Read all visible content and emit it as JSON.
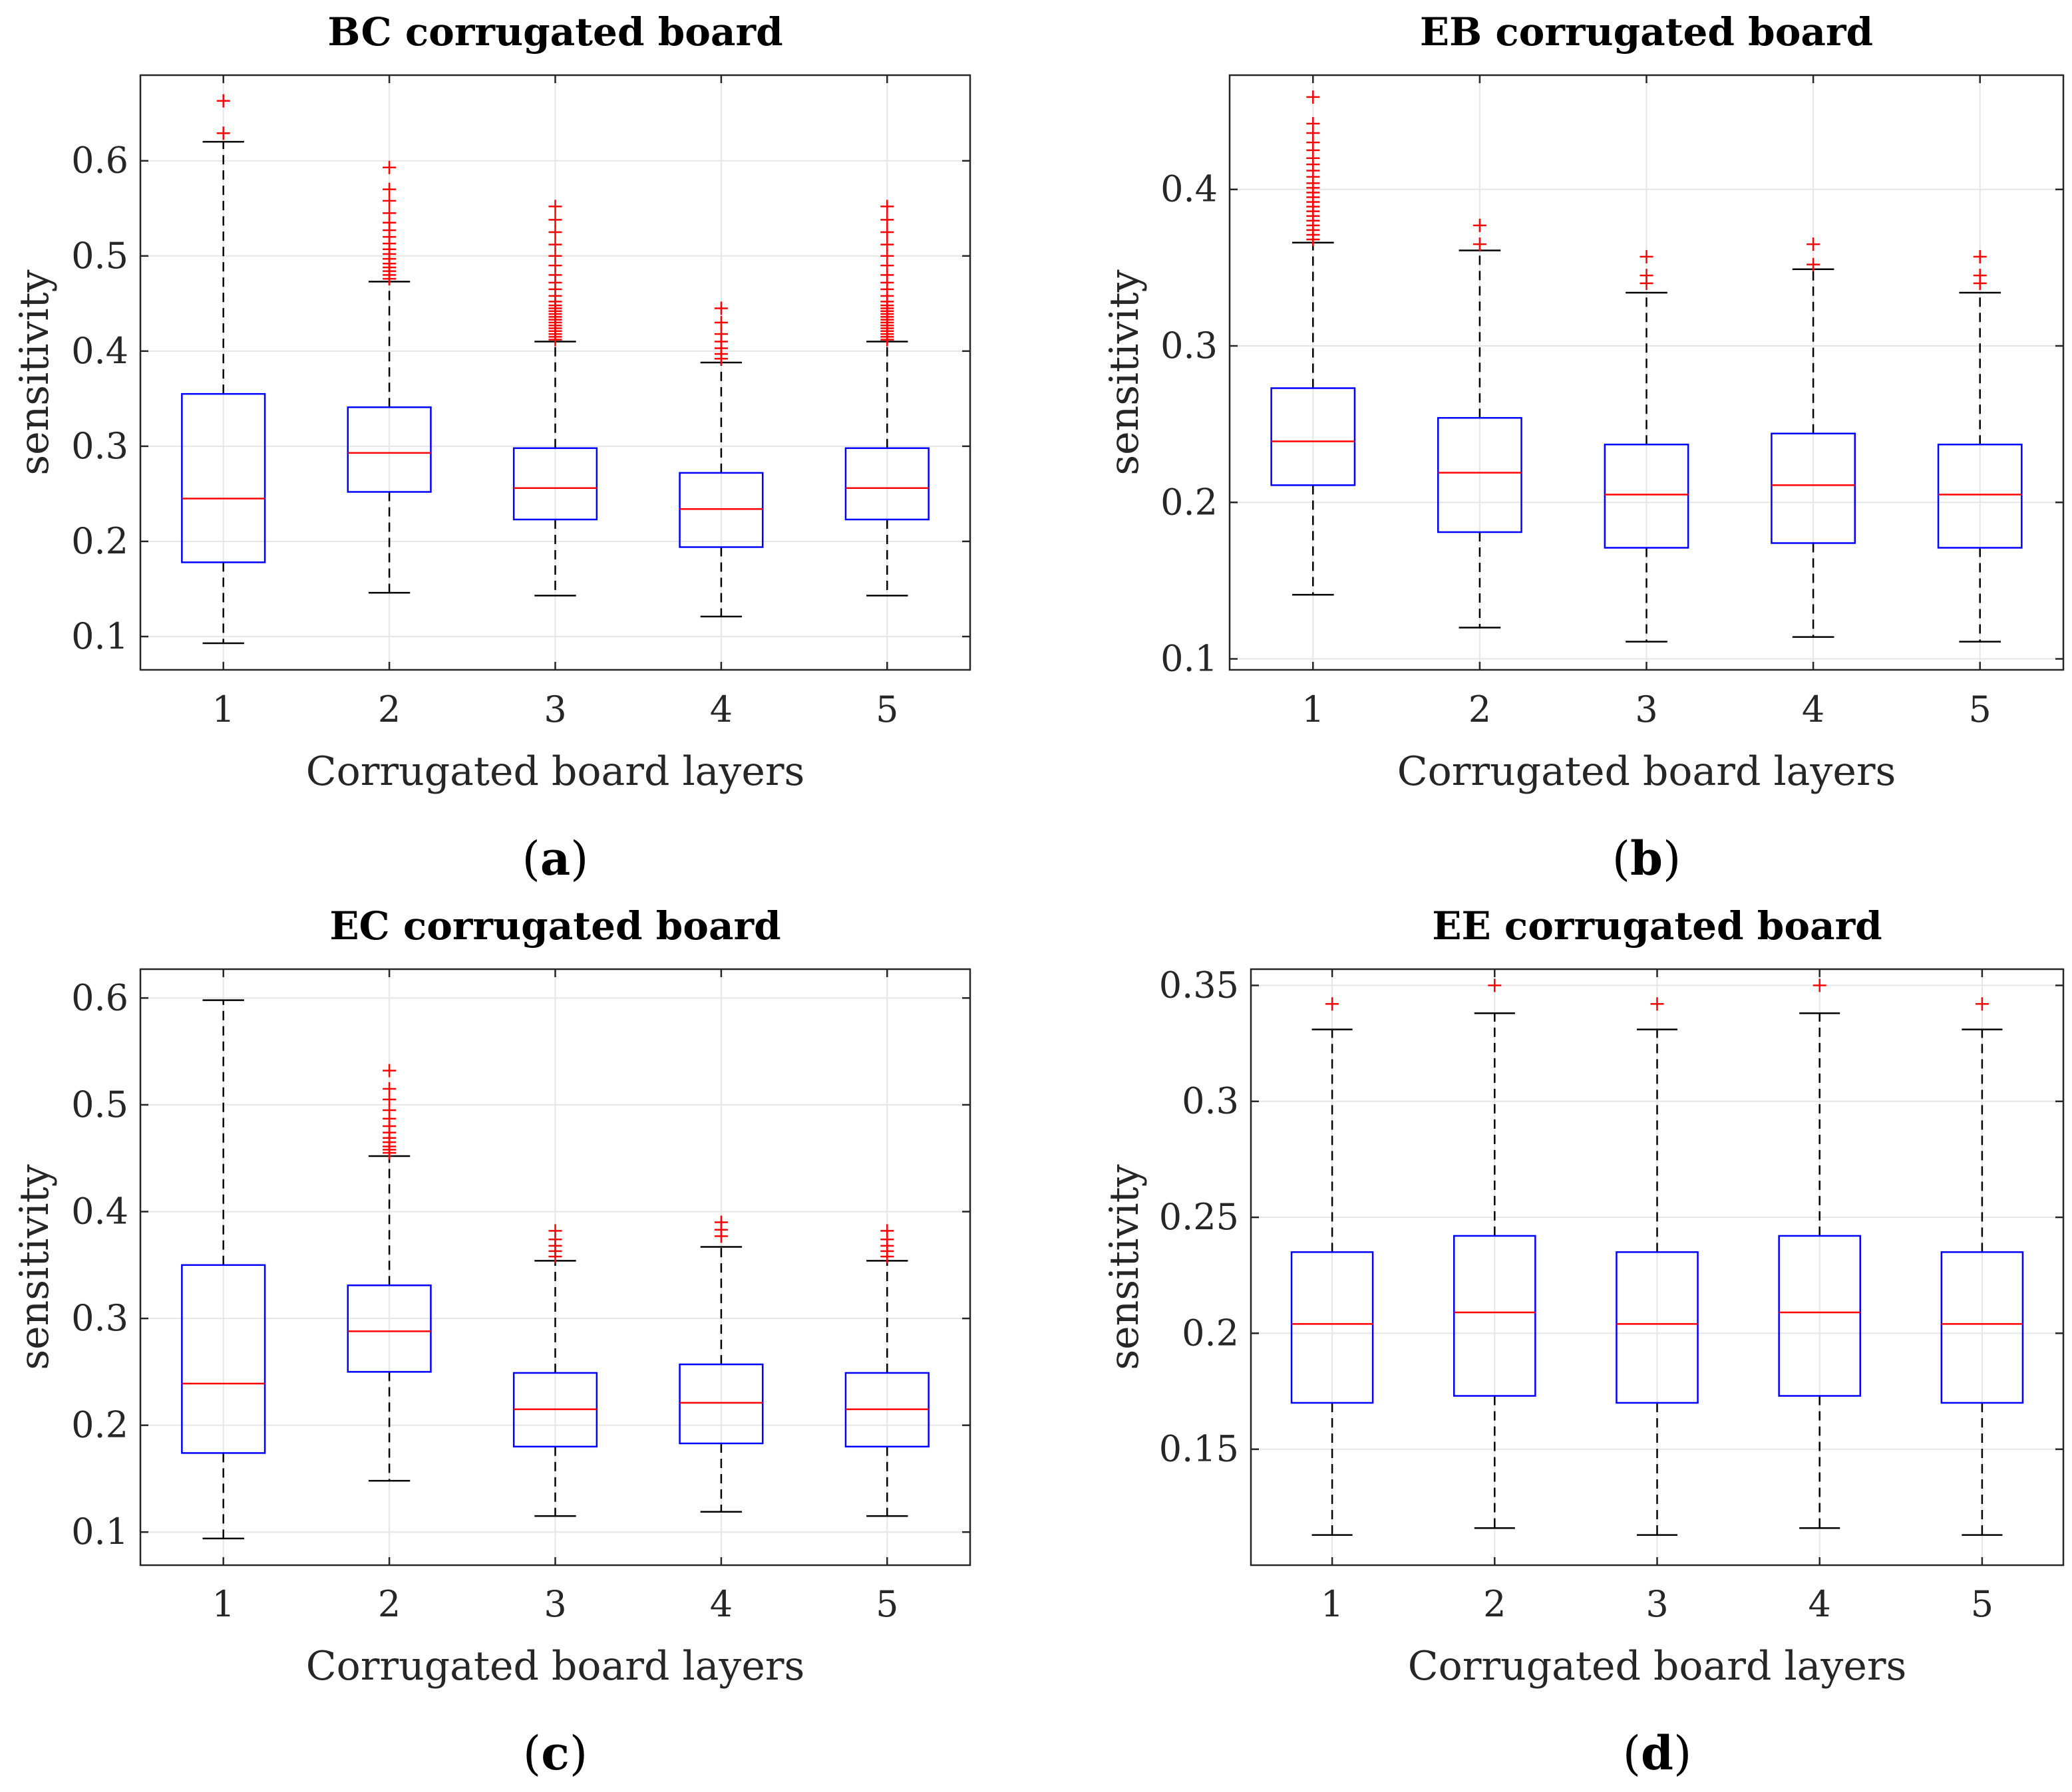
{
  "chart_data": [
    {
      "type": "boxplot",
      "panel_label": "a",
      "title": "BC corrugated board",
      "xlabel": "Corrugated board layers",
      "ylabel": "sensitivity",
      "ylim": [
        0.065,
        0.69
      ],
      "yticks": [
        0.1,
        0.2,
        0.3,
        0.4,
        0.5,
        0.6
      ],
      "ytick_labels": [
        "0.1",
        "0.2",
        "0.3",
        "0.4",
        "0.5",
        "0.6"
      ],
      "categories": [
        "1",
        "2",
        "3",
        "4",
        "5"
      ],
      "grid": true,
      "boxes": [
        {
          "whisker_low": 0.093,
          "q1": 0.178,
          "median": 0.245,
          "q3": 0.355,
          "whisker_high": 0.62,
          "outliers": [
            0.629,
            0.663
          ]
        },
        {
          "whisker_low": 0.146,
          "q1": 0.252,
          "median": 0.293,
          "q3": 0.341,
          "whisker_high": 0.473,
          "outliers": [
            0.476,
            0.48,
            0.484,
            0.488,
            0.492,
            0.497,
            0.502,
            0.507,
            0.513,
            0.52,
            0.527,
            0.535,
            0.545,
            0.558,
            0.57,
            0.593
          ]
        },
        {
          "whisker_low": 0.143,
          "q1": 0.223,
          "median": 0.256,
          "q3": 0.298,
          "whisker_high": 0.41,
          "outliers": [
            0.412,
            0.415,
            0.418,
            0.421,
            0.424,
            0.427,
            0.43,
            0.433,
            0.436,
            0.439,
            0.442,
            0.445,
            0.448,
            0.452,
            0.458,
            0.465,
            0.472,
            0.48,
            0.49,
            0.5,
            0.512,
            0.525,
            0.538,
            0.552
          ]
        },
        {
          "whisker_low": 0.121,
          "q1": 0.194,
          "median": 0.234,
          "q3": 0.272,
          "whisker_high": 0.388,
          "outliers": [
            0.392,
            0.397,
            0.403,
            0.41,
            0.418,
            0.43,
            0.445
          ]
        },
        {
          "whisker_low": 0.143,
          "q1": 0.223,
          "median": 0.256,
          "q3": 0.298,
          "whisker_high": 0.41,
          "outliers": [
            0.412,
            0.415,
            0.418,
            0.421,
            0.424,
            0.427,
            0.43,
            0.433,
            0.436,
            0.439,
            0.442,
            0.445,
            0.448,
            0.452,
            0.458,
            0.465,
            0.472,
            0.48,
            0.49,
            0.5,
            0.512,
            0.525,
            0.538,
            0.552
          ]
        }
      ]
    },
    {
      "type": "boxplot",
      "panel_label": "b",
      "title": "EB corrugated board",
      "xlabel": "Corrugated board layers",
      "ylabel": "sensitivity",
      "ylim": [
        0.093,
        0.473
      ],
      "yticks": [
        0.1,
        0.2,
        0.3,
        0.4
      ],
      "ytick_labels": [
        "0.1",
        "0.2",
        "0.3",
        "0.4"
      ],
      "categories": [
        "1",
        "2",
        "3",
        "4",
        "5"
      ],
      "grid": true,
      "boxes": [
        {
          "whisker_low": 0.141,
          "q1": 0.211,
          "median": 0.239,
          "q3": 0.273,
          "whisker_high": 0.366,
          "outliers": [
            0.368,
            0.371,
            0.374,
            0.377,
            0.38,
            0.383,
            0.386,
            0.389,
            0.392,
            0.395,
            0.398,
            0.401,
            0.404,
            0.408,
            0.412,
            0.416,
            0.42,
            0.425,
            0.43,
            0.436,
            0.442,
            0.459
          ]
        },
        {
          "whisker_low": 0.12,
          "q1": 0.181,
          "median": 0.219,
          "q3": 0.254,
          "whisker_high": 0.361,
          "outliers": [
            0.365,
            0.377
          ]
        },
        {
          "whisker_low": 0.111,
          "q1": 0.171,
          "median": 0.205,
          "q3": 0.237,
          "whisker_high": 0.334,
          "outliers": [
            0.34,
            0.345,
            0.357
          ]
        },
        {
          "whisker_low": 0.114,
          "q1": 0.174,
          "median": 0.211,
          "q3": 0.244,
          "whisker_high": 0.349,
          "outliers": [
            0.352,
            0.365
          ]
        },
        {
          "whisker_low": 0.111,
          "q1": 0.171,
          "median": 0.205,
          "q3": 0.237,
          "whisker_high": 0.334,
          "outliers": [
            0.34,
            0.345,
            0.357
          ]
        }
      ]
    },
    {
      "type": "boxplot",
      "panel_label": "c",
      "title": "EC corrugated board",
      "xlabel": "Corrugated board layers",
      "ylabel": "sensitivity",
      "ylim": [
        0.069,
        0.627
      ],
      "yticks": [
        0.1,
        0.2,
        0.3,
        0.4,
        0.5,
        0.6
      ],
      "ytick_labels": [
        "0.1",
        "0.2",
        "0.3",
        "0.4",
        "0.5",
        "0.6"
      ],
      "categories": [
        "1",
        "2",
        "3",
        "4",
        "5"
      ],
      "grid": true,
      "boxes": [
        {
          "whisker_low": 0.094,
          "q1": 0.174,
          "median": 0.239,
          "q3": 0.35,
          "whisker_high": 0.598,
          "outliers": []
        },
        {
          "whisker_low": 0.148,
          "q1": 0.25,
          "median": 0.288,
          "q3": 0.331,
          "whisker_high": 0.452,
          "outliers": [
            0.455,
            0.458,
            0.461,
            0.465,
            0.469,
            0.474,
            0.48,
            0.487,
            0.495,
            0.505,
            0.515,
            0.532
          ]
        },
        {
          "whisker_low": 0.115,
          "q1": 0.18,
          "median": 0.215,
          "q3": 0.249,
          "whisker_high": 0.354,
          "outliers": [
            0.358,
            0.363,
            0.368,
            0.374,
            0.382
          ]
        },
        {
          "whisker_low": 0.119,
          "q1": 0.183,
          "median": 0.221,
          "q3": 0.257,
          "whisker_high": 0.367,
          "outliers": [
            0.377,
            0.383,
            0.39
          ]
        },
        {
          "whisker_low": 0.115,
          "q1": 0.18,
          "median": 0.215,
          "q3": 0.249,
          "whisker_high": 0.354,
          "outliers": [
            0.358,
            0.363,
            0.368,
            0.374,
            0.382
          ]
        }
      ]
    },
    {
      "type": "boxplot",
      "panel_label": "d",
      "title": "EE corrugated board",
      "xlabel": "Corrugated board layers",
      "ylabel": "sensitivity",
      "ylim": [
        0.1,
        0.357
      ],
      "yticks": [
        0.15,
        0.2,
        0.25,
        0.3,
        0.35
      ],
      "ytick_labels": [
        "0.15",
        "0.2",
        "0.25",
        "0.3",
        "0.35"
      ],
      "categories": [
        "1",
        "2",
        "3",
        "4",
        "5"
      ],
      "grid": true,
      "boxes": [
        {
          "whisker_low": 0.113,
          "q1": 0.17,
          "median": 0.204,
          "q3": 0.235,
          "whisker_high": 0.331,
          "outliers": [
            0.342
          ]
        },
        {
          "whisker_low": 0.116,
          "q1": 0.173,
          "median": 0.209,
          "q3": 0.242,
          "whisker_high": 0.338,
          "outliers": [
            0.35
          ]
        },
        {
          "whisker_low": 0.113,
          "q1": 0.17,
          "median": 0.204,
          "q3": 0.235,
          "whisker_high": 0.331,
          "outliers": [
            0.342
          ]
        },
        {
          "whisker_low": 0.116,
          "q1": 0.173,
          "median": 0.209,
          "q3": 0.242,
          "whisker_high": 0.338,
          "outliers": [
            0.35
          ]
        },
        {
          "whisker_low": 0.113,
          "q1": 0.17,
          "median": 0.204,
          "q3": 0.235,
          "whisker_high": 0.331,
          "outliers": [
            0.342
          ]
        }
      ]
    }
  ],
  "colors": {
    "box": "#0000ff",
    "median": "#ff0000",
    "outlier": "#ff0000",
    "whisker": "#000000",
    "grid": "#e6e6e6",
    "axes": "#262626"
  }
}
